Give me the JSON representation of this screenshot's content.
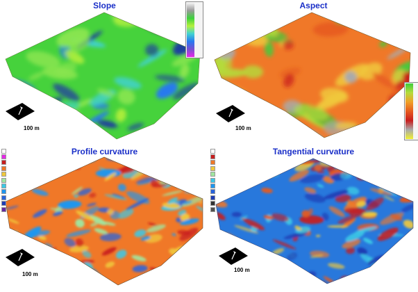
{
  "panels": [
    {
      "title": "Slope",
      "scale_label": ""
    },
    {
      "title": "Aspect",
      "scale_label": "100 m"
    },
    {
      "title": "Profile curvature",
      "scale_label": "100 m"
    },
    {
      "title": "Tangential curvature",
      "scale_label": "100 m"
    }
  ],
  "slope_panel": {
    "scale_label": "100 m"
  },
  "slope_legend": {
    "colors": [
      "#f2f2f2",
      "#9a9a9a",
      "#3cd23c",
      "#b4f03c",
      "#41d2d2",
      "#2878f0",
      "#7850d2",
      "#e628e6"
    ],
    "ticks": [
      "",
      "",
      "",
      "",
      ""
    ]
  },
  "aspect_legend": {
    "colors": [
      "#3ccd3c",
      "#b4dc3c",
      "#f0a028",
      "#e65a1e",
      "#c81e1e",
      "#aaaaaa",
      "#f0f032"
    ],
    "ticks": [
      "",
      "",
      "",
      "",
      ""
    ]
  },
  "profile_legend": {
    "entries": [
      {
        "color": "#ffffff",
        "label": ""
      },
      {
        "color": "#e628e6",
        "label": ""
      },
      {
        "color": "#c81e1e",
        "label": ""
      },
      {
        "color": "#f07828",
        "label": ""
      },
      {
        "color": "#f0c83c",
        "label": ""
      },
      {
        "color": "#a0e6a0",
        "label": ""
      },
      {
        "color": "#3cc8e6",
        "label": ""
      },
      {
        "color": "#1e96f0",
        "label": ""
      },
      {
        "color": "#2864dc",
        "label": ""
      },
      {
        "color": "#1e3cb4",
        "label": ""
      },
      {
        "color": "#6428a0",
        "label": ""
      }
    ]
  },
  "tangential_legend": {
    "entries": [
      {
        "color": "#ffffff",
        "label": ""
      },
      {
        "color": "#c81e1e",
        "label": ""
      },
      {
        "color": "#f07828",
        "label": ""
      },
      {
        "color": "#f0c83c",
        "label": ""
      },
      {
        "color": "#a0e6a0",
        "label": ""
      },
      {
        "color": "#3cc8e6",
        "label": ""
      },
      {
        "color": "#1e96f0",
        "label": ""
      },
      {
        "color": "#2864dc",
        "label": ""
      },
      {
        "color": "#1e3cb4",
        "label": ""
      },
      {
        "color": "#323232",
        "label": ""
      },
      {
        "color": "#505050",
        "label": ""
      }
    ]
  },
  "terrain_colors": {
    "slope": {
      "base": "#46d23c",
      "accents": [
        "#b4f03c",
        "#2878f0",
        "#41d2d2",
        "#1e3ca0",
        "#8ce650"
      ]
    },
    "aspect": {
      "base": "#f07828",
      "accents": [
        "#e65a1e",
        "#3ccd3c",
        "#b4dc3c",
        "#aaaaaa",
        "#c81e1e",
        "#f0c83c"
      ]
    },
    "profile": {
      "base": "#f07828",
      "accents": [
        "#1e96f0",
        "#3cc8e6",
        "#c81e1e",
        "#f0c83c",
        "#2864dc",
        "#a0e6a0"
      ]
    },
    "tangential": {
      "base": "#2878dc",
      "accents": [
        "#f07828",
        "#c81e1e",
        "#3cc8e6",
        "#f0c83c",
        "#1e3cb4",
        "#e65a1e"
      ]
    }
  }
}
